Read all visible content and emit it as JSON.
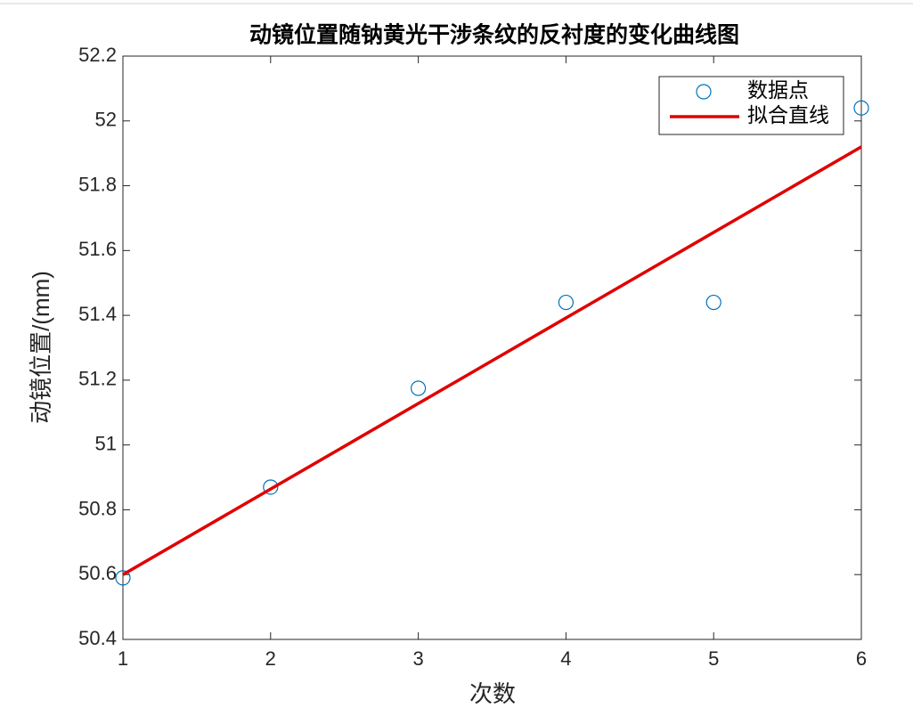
{
  "chart_data": {
    "type": "line",
    "title": "动镜位置随钠黄光干涉条纹的反衬度的变化曲线图",
    "xlabel": "次数",
    "ylabel": "动镜位置/(mm)",
    "series": [
      {
        "name": "数据点",
        "color": "#0072bd",
        "style": "marker",
        "x": [
          1,
          2,
          3,
          4,
          5,
          6
        ],
        "values": [
          50.59,
          50.87,
          51.175,
          51.44,
          51.44,
          52.04
        ]
      },
      {
        "name": "拟合直线",
        "color": "#e00000",
        "style": "line",
        "x": [
          1,
          6
        ],
        "values": [
          50.6,
          51.92
        ]
      }
    ],
    "xlim": [
      1,
      6
    ],
    "xticks": [
      1,
      2,
      3,
      4,
      5,
      6
    ],
    "ylim": [
      50.4,
      52.2
    ],
    "yticks": [
      50.4,
      50.6,
      50.8,
      51,
      51.2,
      51.4,
      51.6,
      51.8,
      52,
      52.2
    ],
    "legend": "upper right",
    "grid": false
  }
}
